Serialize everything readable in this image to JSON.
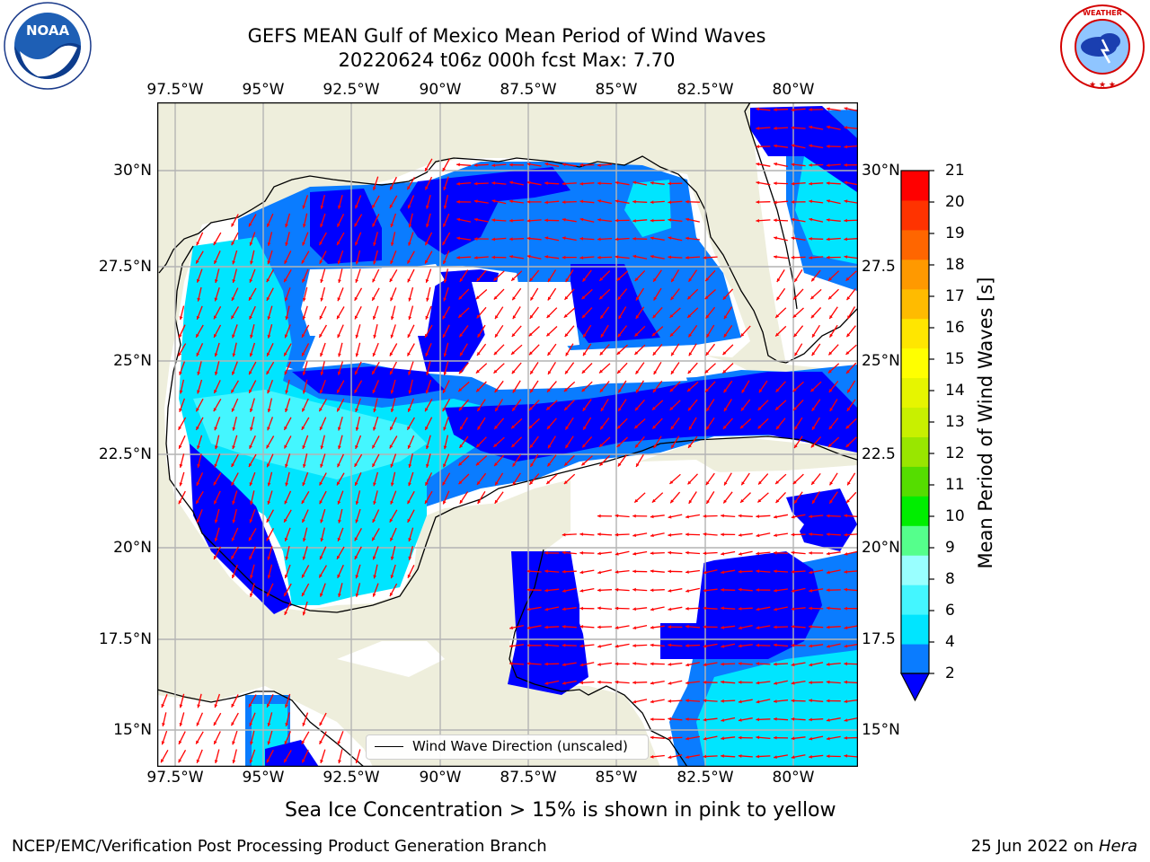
{
  "title": {
    "line1": "GEFS MEAN Gulf of Mexico Mean Period of Wind Waves",
    "line2": "20220624 t06z 000h fcst   Max: 7.70"
  },
  "logos": {
    "left": {
      "name": "noaa-logo",
      "text": "NOAA",
      "ring_text": "NATIONAL OCEANIC AND ATMOSPHERIC ADMINISTRATION · U.S. DEPARTMENT OF COMMERCE"
    },
    "right": {
      "name": "nws-logo",
      "ring_text": "NATIONAL WEATHER SERVICE"
    }
  },
  "map": {
    "lon_ticks": [
      "97.5°W",
      "95°W",
      "92.5°W",
      "90°W",
      "87.5°W",
      "85°W",
      "82.5°W",
      "80°W"
    ],
    "lat_ticks_left": [
      "30°N",
      "27.5°N",
      "25°N",
      "22.5°N",
      "20°N",
      "17.5°N",
      "15°N"
    ],
    "lat_ticks_right": [
      "30°N",
      "27.5",
      "25°N",
      "22.5",
      "20°N",
      "17.5",
      "15°N"
    ],
    "land_color": "#eeeedc",
    "arrow_color": "#ff0000",
    "legend_label": "Wind Wave Direction (unscaled)"
  },
  "colorbar": {
    "label": "Mean Period of Wind Waves [s]",
    "ticks": [
      "2",
      "4",
      "6",
      "8",
      "9",
      "10",
      "11",
      "12",
      "13",
      "14",
      "15",
      "16",
      "17",
      "18",
      "19",
      "20",
      "21"
    ],
    "colors": [
      "#0a7cff",
      "#00e5ff",
      "#44f6ff",
      "#99ffff",
      "#55ff8c",
      "#00ee00",
      "#55dd00",
      "#99e600",
      "#c8f000",
      "#e6f500",
      "#ffff00",
      "#ffe600",
      "#ffbb00",
      "#ff9900",
      "#ff6600",
      "#ff3300",
      "#ff0000"
    ],
    "extend_color": "#0000ff"
  },
  "notes": {
    "sea_ice": "Sea Ice Concentration > 15% is shown in pink to yellow",
    "producer": "NCEP/EMC/Verification Post Processing Product Generation Branch",
    "date": "25 Jun 2022 on ",
    "machine": "Hera"
  }
}
